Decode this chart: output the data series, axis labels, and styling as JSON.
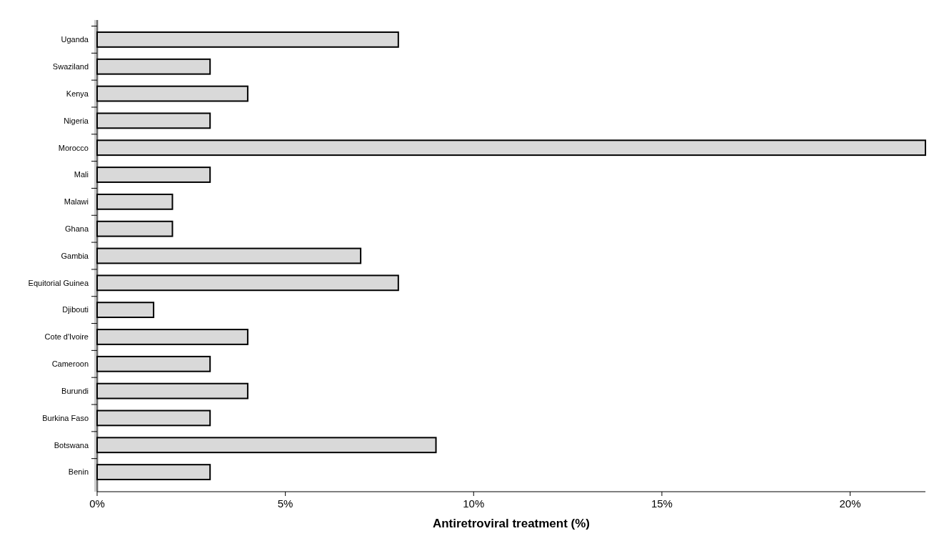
{
  "chart_data": {
    "type": "bar",
    "orientation": "horizontal",
    "xlabel": "Antiretroviral treatment (%)",
    "categories": [
      "Uganda",
      "Swaziland",
      "Kenya",
      "Nigeria",
      "Morocco",
      "Mali",
      "Malawi",
      "Ghana",
      "Gambia",
      "Equitorial Guinea",
      "Djibouti",
      "Cote d'Ivoire",
      "Cameroon",
      "Burundi",
      "Burkina Faso",
      "Botswana",
      "Benin"
    ],
    "values": [
      8,
      3,
      4,
      3,
      22,
      3,
      2,
      2,
      7,
      8,
      1.5,
      4,
      3,
      4,
      3,
      9,
      3
    ],
    "color": "#d9d9d9",
    "xlim": [
      0,
      22
    ],
    "xticks": [
      {
        "value": 0,
        "label": "0%"
      },
      {
        "value": 5,
        "label": "5%"
      },
      {
        "value": 10,
        "label": "10%"
      },
      {
        "value": 15,
        "label": "15%"
      },
      {
        "value": 20,
        "label": "20%"
      }
    ],
    "grid": false
  }
}
